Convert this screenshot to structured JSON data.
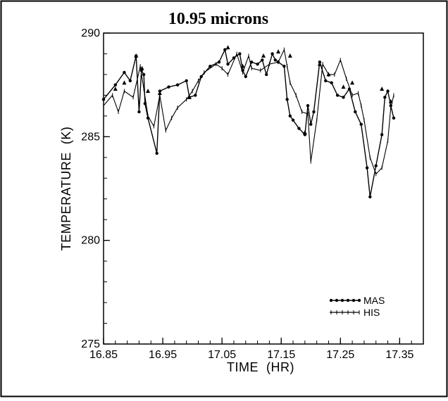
{
  "chart_data": {
    "type": "line",
    "title": "10.95 microns",
    "xlabel": "TIME  (HR)",
    "ylabel": "TEMPERATURE  (K)",
    "xlim": [
      16.85,
      17.39
    ],
    "ylim": [
      275,
      290
    ],
    "xticks": [
      16.85,
      16.95,
      17.05,
      17.15,
      17.25,
      17.35
    ],
    "xtick_labels": [
      "16.85",
      "16.95",
      "17.05",
      "17.15",
      "17.25",
      "17.35"
    ],
    "yticks": [
      275,
      280,
      285,
      290
    ],
    "ytick_labels": [
      "275",
      "280",
      "285",
      "290"
    ],
    "legend_position": "lower-right",
    "grid": false,
    "series": [
      {
        "name": "MAS",
        "marker": "dot",
        "x": [
          16.85,
          16.87,
          16.885,
          16.895,
          16.905,
          16.91,
          16.914,
          16.918,
          16.92,
          16.925,
          16.94,
          16.945,
          16.96,
          16.975,
          16.99,
          16.995,
          17.005,
          17.015,
          17.03,
          17.045,
          17.055,
          17.06,
          17.07,
          17.08,
          17.085,
          17.09,
          17.1,
          17.11,
          17.118,
          17.125,
          17.135,
          17.14,
          17.145,
          17.155,
          17.16,
          17.165,
          17.17,
          17.18,
          17.19,
          17.195,
          17.2,
          17.205,
          17.215,
          17.225,
          17.235,
          17.245,
          17.255,
          17.265,
          17.275,
          17.285,
          17.295,
          17.3,
          17.31,
          17.32,
          17.325,
          17.33,
          17.335,
          17.34
        ],
        "y": [
          286.8,
          287.5,
          288.1,
          287.7,
          288.9,
          286.2,
          288.2,
          288.0,
          286.6,
          285.9,
          284.2,
          287.2,
          287.4,
          287.5,
          287.7,
          286.9,
          287.0,
          287.9,
          288.4,
          288.6,
          289.2,
          288.5,
          288.8,
          289.0,
          288.2,
          287.9,
          288.6,
          288.5,
          288.7,
          288.0,
          289.0,
          288.7,
          288.6,
          288.4,
          286.8,
          286.0,
          285.8,
          285.4,
          285.1,
          286.5,
          285.6,
          286.2,
          288.6,
          287.7,
          287.6,
          287.0,
          286.9,
          287.3,
          286.2,
          285.6,
          283.5,
          282.1,
          283.6,
          285.1,
          286.9,
          287.2,
          286.5,
          285.9
        ]
      },
      {
        "name": "HIS",
        "marker": "tick",
        "x": [
          16.85,
          16.865,
          16.875,
          16.885,
          16.9,
          16.912,
          16.918,
          16.925,
          16.935,
          16.945,
          16.955,
          16.965,
          16.975,
          16.99,
          17.0,
          17.01,
          17.02,
          17.04,
          17.05,
          17.06,
          17.075,
          17.085,
          17.095,
          17.1,
          17.115,
          17.13,
          17.145,
          17.155,
          17.16,
          17.165,
          17.175,
          17.185,
          17.195,
          17.2,
          17.21,
          17.22,
          17.23,
          17.24,
          17.25,
          17.26,
          17.27,
          17.28,
          17.285,
          17.29,
          17.3,
          17.31,
          17.32,
          17.33,
          17.335,
          17.34
        ],
        "y": [
          286.5,
          287.0,
          286.2,
          287.2,
          286.9,
          288.4,
          287.3,
          286.0,
          285.5,
          287.0,
          285.3,
          285.9,
          286.4,
          286.8,
          287.2,
          287.7,
          288.1,
          288.5,
          288.3,
          288.0,
          289.0,
          288.1,
          288.9,
          288.3,
          288.2,
          288.5,
          288.6,
          289.2,
          288.4,
          287.6,
          287.0,
          286.2,
          286.1,
          283.8,
          285.8,
          288.5,
          288.0,
          288.0,
          288.7,
          287.8,
          287.0,
          287.1,
          286.5,
          285.8,
          284.0,
          283.2,
          283.5,
          284.8,
          286.4,
          287.0
        ]
      },
      {
        "name": "",
        "marker": "triangle",
        "x": [
          16.87,
          16.885,
          16.905,
          16.915,
          16.925,
          16.945,
          16.995,
          17.06,
          17.085,
          17.12,
          17.145,
          17.165,
          17.19,
          17.215,
          17.23,
          17.255,
          17.27,
          17.32,
          17.335
        ],
        "y": [
          287.3,
          287.6,
          288.9,
          288.3,
          287.2,
          287.1,
          286.9,
          289.3,
          288.4,
          288.9,
          289.1,
          288.9,
          285.2,
          288.5,
          288.0,
          287.4,
          287.6,
          287.3,
          286.7
        ]
      }
    ]
  }
}
